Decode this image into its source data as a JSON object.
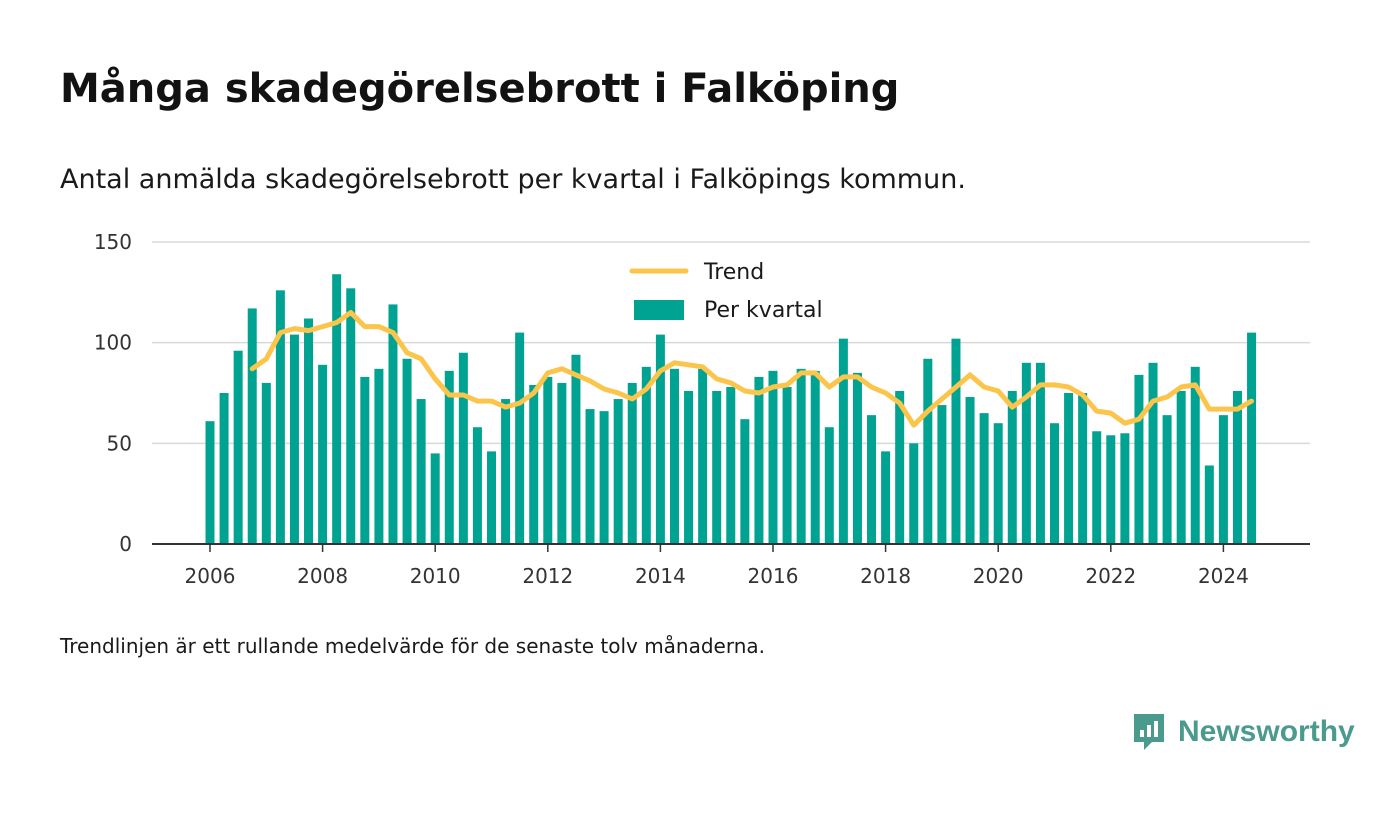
{
  "title": "Många skadegörelsebrott i Falköping",
  "subtitle": "Antal anmälda skadegörelsebrott per kvartal i Falköpings kommun.",
  "footnote": "Trendlinjen är ett rullande medelvärde för de senaste tolv månaderna.",
  "brand": {
    "name": "Newsworthy",
    "icon": "newsworthy-logo-icon",
    "color": "#4a9a8e"
  },
  "colors": {
    "bar": "#00a392",
    "trend": "#fbc44a",
    "grid": "#d9d9d9",
    "axis": "#333333"
  },
  "chart_data": {
    "type": "bar",
    "title": "Många skadegörelsebrott i Falköping",
    "subtitle": "Antal anmälda skadegörelsebrott per kvartal i Falköpings kommun.",
    "ylim": [
      0,
      150
    ],
    "yticks": [
      "0",
      "50",
      "100",
      "150"
    ],
    "xticks": [
      "2006",
      "2008",
      "2010",
      "2012",
      "2014",
      "2016",
      "2018",
      "2020",
      "2022",
      "2024"
    ],
    "xlim": [
      2005,
      2025.5
    ],
    "grid": true,
    "legend": {
      "position": "top-center",
      "entries": [
        "Trend",
        "Per kvartal"
      ]
    },
    "series": [
      {
        "name": "Per kvartal",
        "kind": "bar",
        "x_start": "2006-Q1",
        "values": [
          61,
          75,
          96,
          117,
          80,
          126,
          104,
          112,
          89,
          134,
          127,
          83,
          87,
          119,
          92,
          72,
          45,
          86,
          95,
          58,
          46,
          72,
          105,
          79,
          83,
          80,
          94,
          67,
          66,
          72,
          80,
          88,
          104,
          87,
          76,
          87,
          76,
          78,
          62,
          83,
          86,
          78,
          87,
          86,
          58,
          102,
          85,
          64,
          46,
          76,
          50,
          92,
          69,
          102,
          73,
          65,
          60,
          76,
          90,
          90,
          60,
          75,
          75,
          56,
          54,
          55,
          84,
          90,
          64,
          76,
          88,
          39,
          64,
          76,
          105
        ]
      },
      {
        "name": "Trend",
        "kind": "line",
        "x_start": "2006-Q4",
        "values": [
          87,
          92,
          105,
          107,
          106,
          108,
          110,
          115,
          108,
          108,
          105,
          95,
          92,
          82,
          74,
          74,
          71,
          71,
          68,
          70,
          75,
          85,
          87,
          84,
          81,
          77,
          75,
          72,
          77,
          86,
          90,
          89,
          88,
          82,
          80,
          76,
          75,
          78,
          79,
          85,
          85,
          78,
          83,
          83,
          78,
          75,
          70,
          59,
          66,
          72,
          78,
          84,
          78,
          76,
          68,
          73,
          79,
          79,
          78,
          74,
          66,
          65,
          60,
          62,
          71,
          73,
          78,
          79,
          67,
          67,
          67,
          71
        ]
      }
    ]
  }
}
